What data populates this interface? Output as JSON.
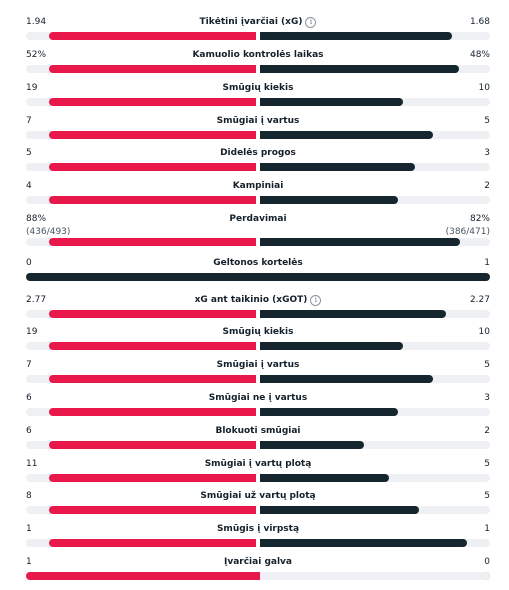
{
  "colors": {
    "home": "#e8184a",
    "away": "#16262f",
    "track": "#eef0f3"
  },
  "rows": [
    {
      "title": "Tikėtini įvarčiai (xG)",
      "info": true,
      "info_icon": "info-icon",
      "home": "1.94",
      "away": "1.68",
      "home_share": 0.536,
      "away_share": 0.464
    },
    {
      "title": "Kamuolio kontrolės laikas",
      "home": "52%",
      "away": "48%",
      "home_share": 0.52,
      "away_share": 0.48
    },
    {
      "title": "Smūgių kiekis",
      "home": "19",
      "away": "10",
      "home_share": 0.655,
      "away_share": 0.345
    },
    {
      "title": "Smūgiai į vartus",
      "home": "7",
      "away": "5",
      "home_share": 0.583,
      "away_share": 0.417
    },
    {
      "title": "Didelės progos",
      "home": "5",
      "away": "3",
      "home_share": 0.625,
      "away_share": 0.375
    },
    {
      "title": "Kampiniai",
      "home": "4",
      "away": "2",
      "home_share": 0.667,
      "away_share": 0.333
    },
    {
      "title": "Perdavimai",
      "home": "88%",
      "away": "82%",
      "home_sub": "(436/493)",
      "away_sub": "(386/471)",
      "home_share": 0.518,
      "away_share": 0.482
    },
    {
      "title": "Geltonos kortelės",
      "home": "0",
      "away": "1",
      "home_share": 0,
      "away_share": 1
    },
    {
      "title": "xG ant taikinio (xGOT)",
      "info": true,
      "info_icon": "info-icon",
      "home": "2.77",
      "away": "2.27",
      "home_share": 0.55,
      "away_share": 0.45
    },
    {
      "title": "Smūgių kiekis",
      "home": "19",
      "away": "10",
      "home_share": 0.655,
      "away_share": 0.345
    },
    {
      "title": "Smūgiai į vartus",
      "home": "7",
      "away": "5",
      "home_share": 0.583,
      "away_share": 0.417
    },
    {
      "title": "Smūgiai ne į vartus",
      "home": "6",
      "away": "3",
      "home_share": 0.667,
      "away_share": 0.333
    },
    {
      "title": "Blokuoti smūgiai",
      "home": "6",
      "away": "2",
      "home_share": 0.75,
      "away_share": 0.25
    },
    {
      "title": "Smūgiai į vartų plotą",
      "home": "11",
      "away": "5",
      "home_share": 0.688,
      "away_share": 0.312
    },
    {
      "title": "Smūgiai už vartų plotą",
      "home": "8",
      "away": "5",
      "home_share": 0.615,
      "away_share": 0.385
    },
    {
      "title": "Smūgis į virpstą",
      "home": "1",
      "away": "1",
      "home_share": 0.5,
      "away_share": 0.5
    },
    {
      "title": "Įvarčiai galva",
      "home": "1",
      "away": "0",
      "home_share": 1,
      "away_share": 0
    }
  ]
}
